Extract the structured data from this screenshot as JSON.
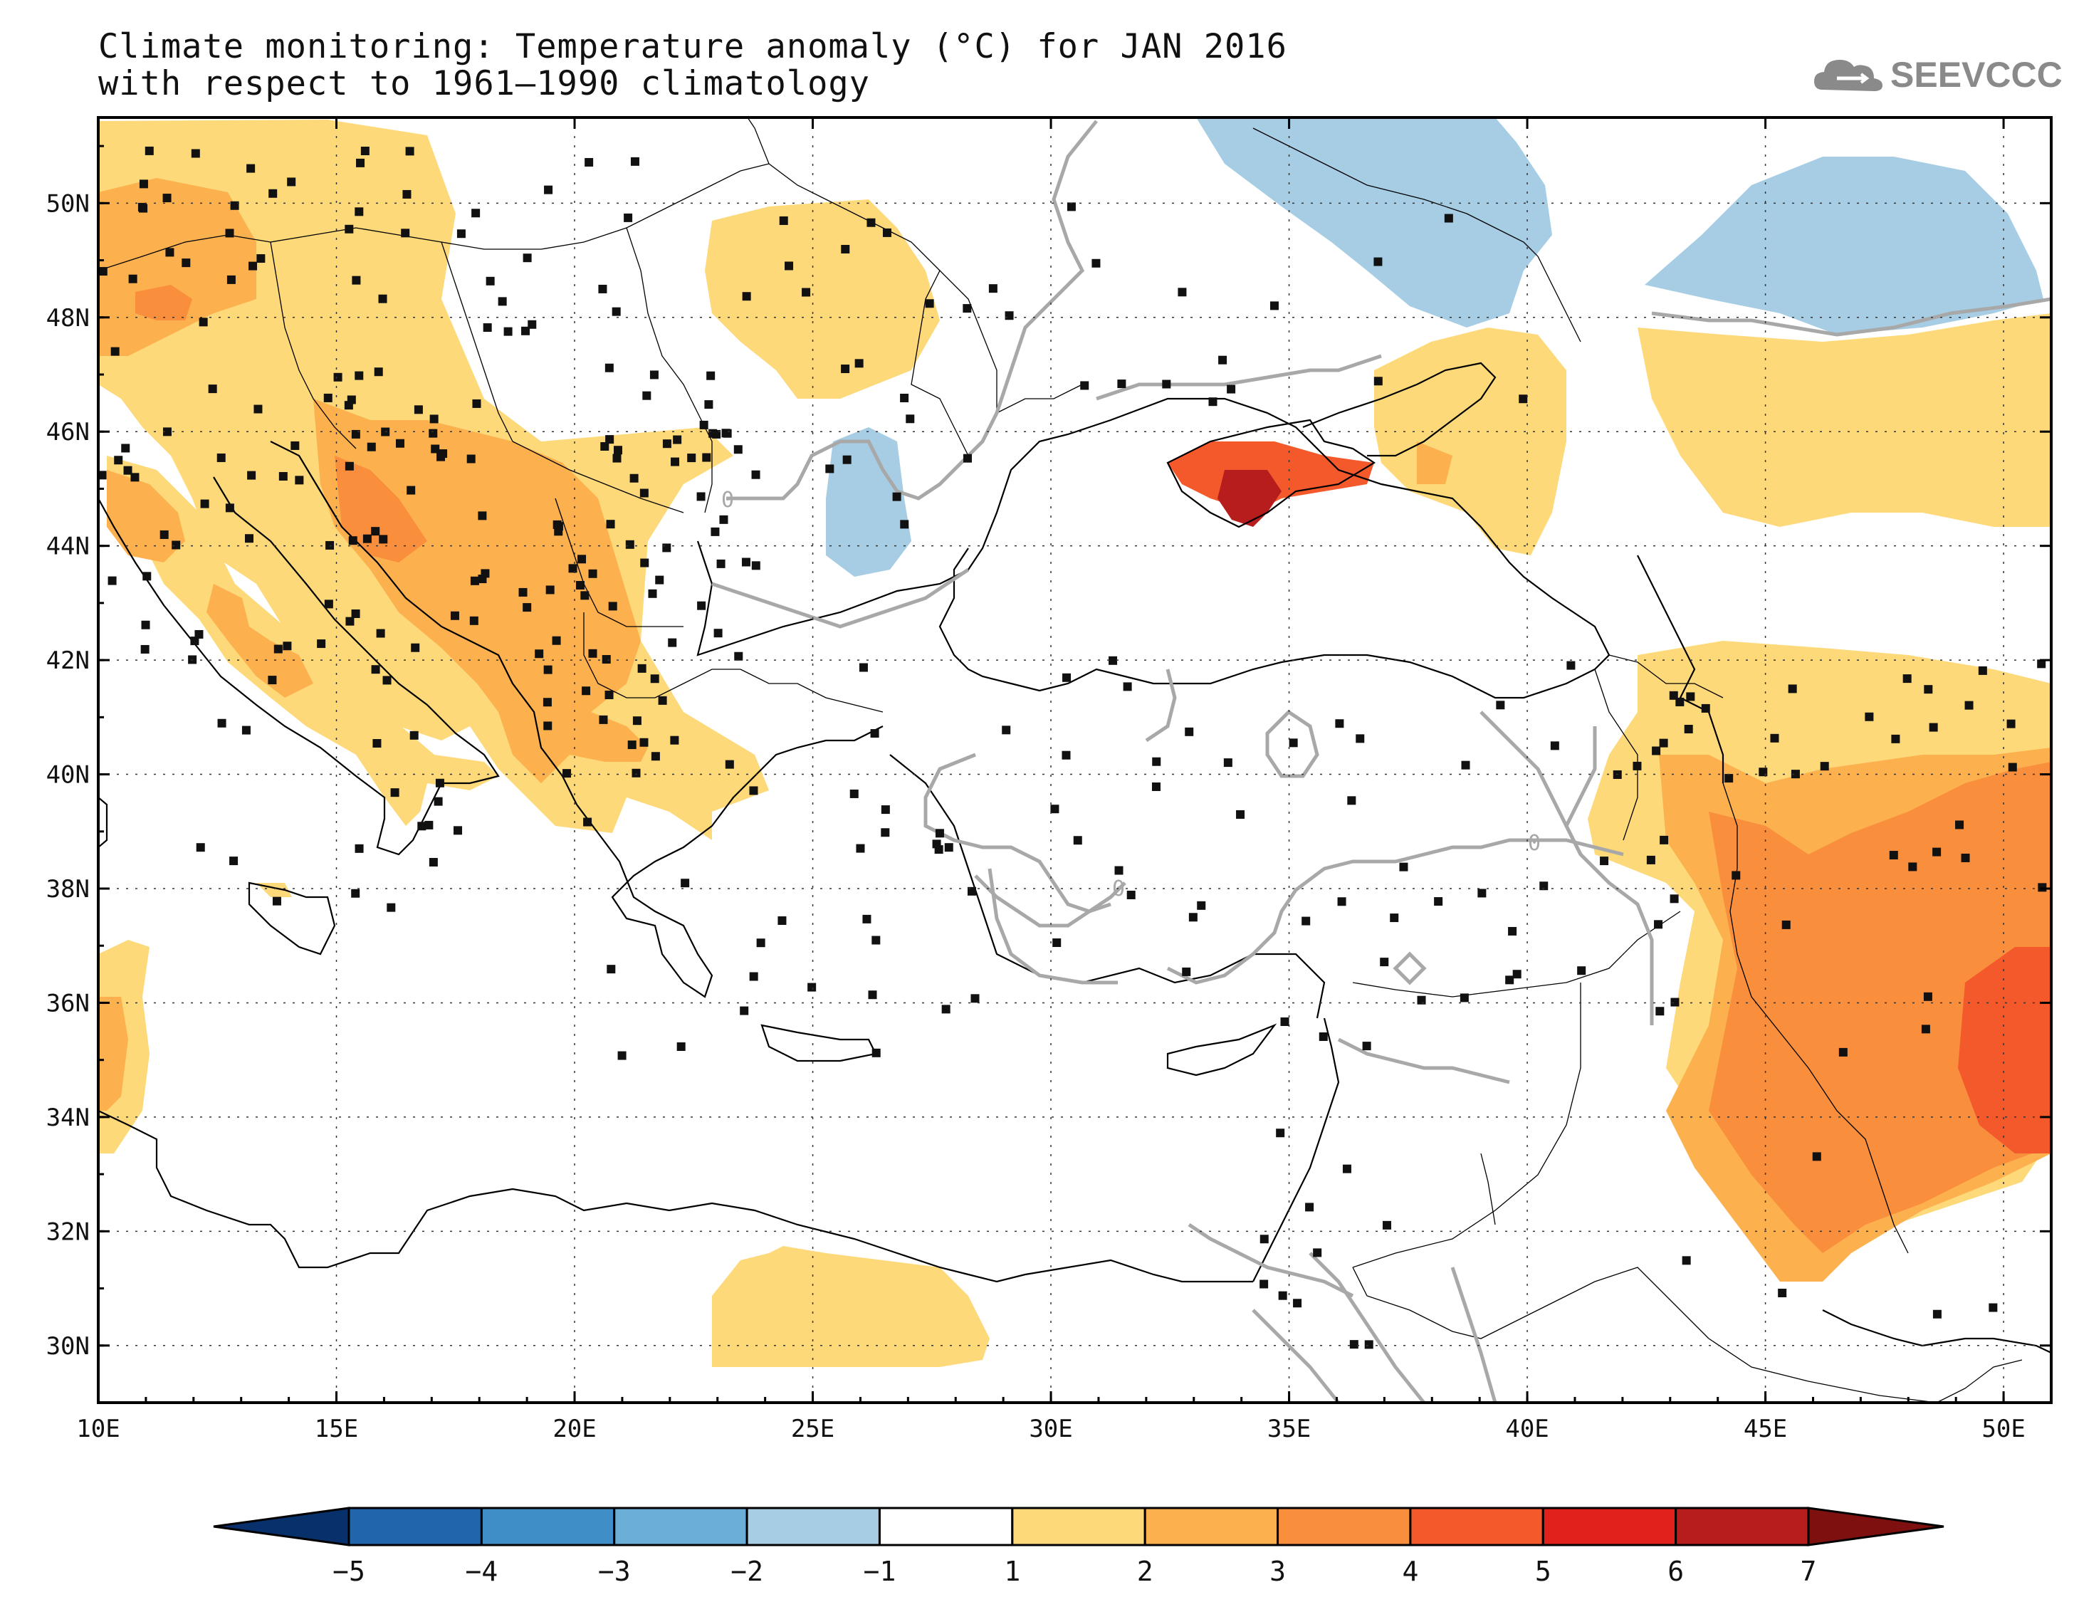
{
  "title_line1": "Climate monitoring: Temperature anomaly (°C) for JAN 2016",
  "title_line2": "with respect to 1961–1990 climatology",
  "logo_text": "SEEVCCC",
  "map": {
    "lon_range": [
      10,
      51
    ],
    "lat_range": [
      29,
      51.5
    ],
    "lon_ticks": [
      "10E",
      "15E",
      "20E",
      "25E",
      "30E",
      "35E",
      "40E",
      "45E",
      "50E"
    ],
    "lat_ticks": [
      "30N",
      "32N",
      "34N",
      "36N",
      "38N",
      "40N",
      "42N",
      "44N",
      "46N",
      "48N",
      "50N"
    ],
    "contour_labels": [
      "0",
      "0",
      "0"
    ],
    "gridlines": "dotted"
  },
  "colorbar": {
    "labels": [
      "−5",
      "−4",
      "−3",
      "−2",
      "−1",
      "1",
      "2",
      "3",
      "4",
      "5",
      "6",
      "7"
    ],
    "colors": [
      "#08306b",
      "#2166ac",
      "#3f8ec7",
      "#6baed6",
      "#a6cde3",
      "#ffffff",
      "#fdd97a",
      "#fcb04e",
      "#f98e3d",
      "#f4592c",
      "#e0211c",
      "#b71d1d",
      "#7f1010"
    ]
  },
  "colors": {
    "anom_1_2": "#fdd97a",
    "anom_2_3": "#fcb04e",
    "anom_3_4": "#f98e3d",
    "anom_4_5": "#f4592c",
    "anom_6_7": "#b71d1d",
    "anom_m2_m1": "#a6cde3"
  }
}
